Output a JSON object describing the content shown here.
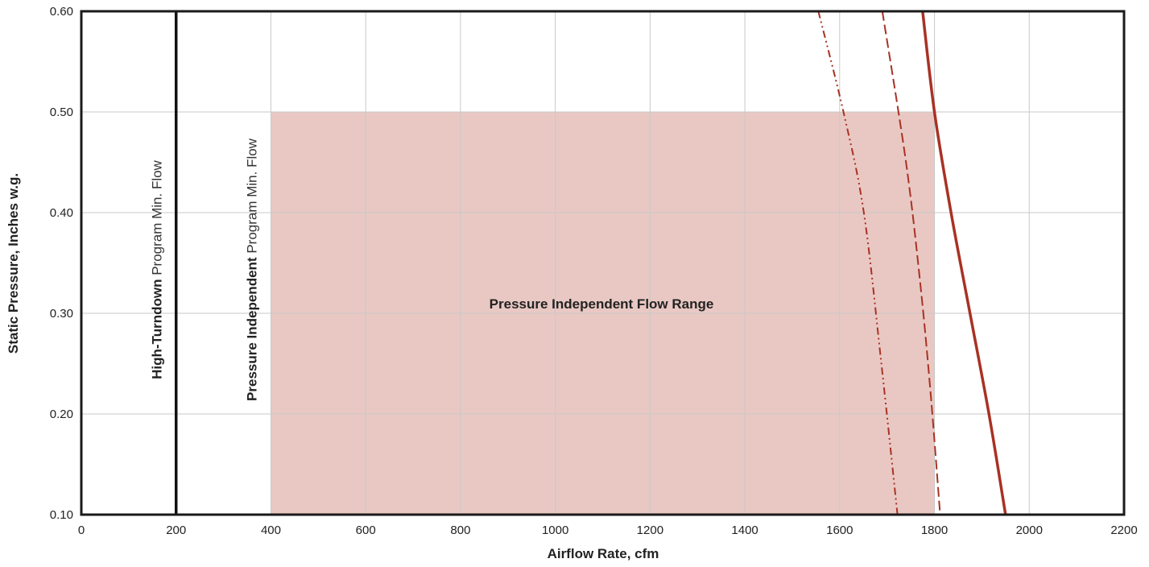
{
  "chart_data": {
    "type": "line",
    "xlabel": "Airflow Rate, cfm",
    "ylabel": "Static Pressure, Inches w.g.",
    "xlim": [
      0,
      2200
    ],
    "ylim": [
      0.1,
      0.6
    ],
    "x_ticks": [
      0,
      200,
      400,
      600,
      800,
      1000,
      1200,
      1400,
      1600,
      1800,
      2000,
      2200
    ],
    "y_ticks": [
      0.1,
      0.2,
      0.3,
      0.4,
      0.5,
      0.6
    ],
    "x_tick_labels": [
      "0",
      "200",
      "400",
      "600",
      "800",
      "1000",
      "1200",
      "1400",
      "1600",
      "1800",
      "2000",
      "2200"
    ],
    "y_tick_labels": [
      "0.10",
      "0.20",
      "0.30",
      "0.40",
      "0.50",
      "0.60"
    ],
    "grid": true,
    "region": {
      "label": "Pressure Independent Flow Range",
      "x": [
        400,
        1800
      ],
      "y": [
        0.1,
        0.5
      ],
      "color": "#e9c8c3"
    },
    "min_flow_lines": [
      {
        "x": 200,
        "bold": "High-Turndown",
        "rest": " Program Min. Flow",
        "color": "#111111"
      },
      {
        "x": 400,
        "bold": "Pressure Independent",
        "rest": " Program Min. Flow",
        "color": "#111111"
      }
    ],
    "series": [
      {
        "style": "dash-dot",
        "color": "#a83224",
        "x": [
          1555,
          1608,
          1651,
          1688,
          1722
        ],
        "y": [
          0.6,
          0.5,
          0.4,
          0.25,
          0.1
        ]
      },
      {
        "style": "dashed",
        "color": "#a83224",
        "x": [
          1690,
          1740,
          1770,
          1792,
          1812
        ],
        "y": [
          0.6,
          0.45,
          0.33,
          0.22,
          0.1
        ]
      },
      {
        "style": "solid",
        "color": "#a83224",
        "x": [
          1775,
          1800,
          1835,
          1875,
          1915,
          1950
        ],
        "y": [
          0.6,
          0.5,
          0.4,
          0.3,
          0.2,
          0.1
        ]
      }
    ]
  }
}
